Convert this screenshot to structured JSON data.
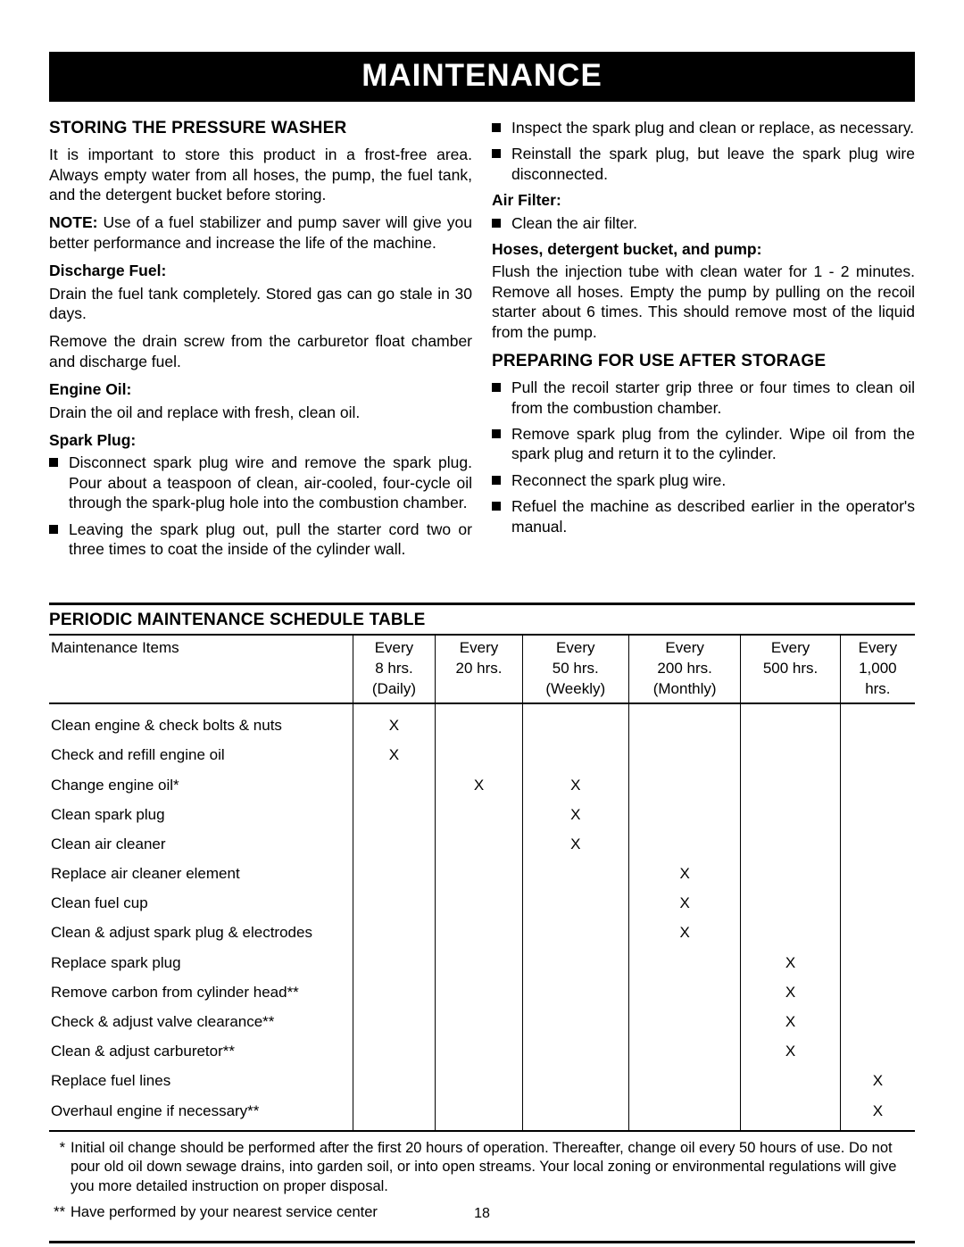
{
  "page_number": "18",
  "banner": "MAINTENANCE",
  "colors": {
    "banner_bg": "#000000",
    "banner_fg": "#ffffff",
    "text": "#000000",
    "page_bg": "#ffffff"
  },
  "left": {
    "heading": "STORING THE PRESSURE WASHER",
    "intro": "It is important to store this product in a frost-free area. Always empty water from all hoses, the pump, the fuel tank, and the detergent bucket before storing.",
    "note_label": "NOTE:",
    "note_body": " Use of a fuel stabilizer and pump saver will give you better performance and increase the life of the machine.",
    "discharge_head": "Discharge Fuel:",
    "discharge_p1": "Drain the fuel tank completely. Stored gas can go stale in 30 days.",
    "discharge_p2": "Remove the drain screw from the carburetor float chamber and discharge fuel.",
    "engine_oil_head": "Engine Oil:",
    "engine_oil_p": "Drain the oil and replace with fresh, clean oil.",
    "spark_head": "Spark Plug:",
    "spark_items": [
      "Disconnect spark plug wire and remove the spark plug. Pour about a teaspoon of clean, air-cooled, four-cycle oil through the spark-plug hole into the combustion chamber.",
      "Leaving the spark plug out, pull the starter cord two or three times to coat the inside of the cylinder wall."
    ]
  },
  "right": {
    "cont_items": [
      "Inspect the spark plug and clean or replace, as necessary.",
      "Reinstall the spark plug, but leave the spark plug wire disconnected."
    ],
    "air_head": "Air Filter:",
    "air_items": [
      "Clean the air filter."
    ],
    "hoses_head": "Hoses, detergent bucket, and pump:",
    "hoses_p": "Flush the injection tube with clean water for 1 - 2 minutes. Remove all hoses. Empty the pump by pulling on the recoil starter about 6 times. This should remove most of the liquid from the pump.",
    "prep_heading": "PREPARING FOR USE AFTER STORAGE",
    "prep_items": [
      "Pull the recoil starter grip three or four times to clean oil from the combustion chamber.",
      "Remove spark plug from the cylinder. Wipe oil from the spark plug and return it to the cylinder.",
      "Reconnect the spark plug wire.",
      "Refuel the machine as described earlier in the operator's manual."
    ]
  },
  "table": {
    "title": "PERIODIC MAINTENANCE SCHEDULE TABLE",
    "first_col": "Maintenance Items",
    "columns": [
      [
        "Every",
        "8 hrs.",
        "(Daily)"
      ],
      [
        "Every",
        "20 hrs.",
        ""
      ],
      [
        "Every",
        "50 hrs.",
        "(Weekly)"
      ],
      [
        "Every",
        "200 hrs.",
        "(Monthly)"
      ],
      [
        "Every",
        "500 hrs.",
        ""
      ],
      [
        "Every",
        "1,000",
        "hrs."
      ]
    ],
    "rows": [
      {
        "item": "Clean engine & check bolts & nuts",
        "marks": [
          "X",
          "",
          "",
          "",
          "",
          ""
        ]
      },
      {
        "item": "Check and refill engine oil",
        "marks": [
          "X",
          "",
          "",
          "",
          "",
          ""
        ]
      },
      {
        "item": "Change engine oil*",
        "marks": [
          "",
          "X",
          "X",
          "",
          "",
          ""
        ]
      },
      {
        "item": "Clean spark plug",
        "marks": [
          "",
          "",
          "X",
          "",
          "",
          ""
        ]
      },
      {
        "item": "Clean air cleaner",
        "marks": [
          "",
          "",
          "X",
          "",
          "",
          ""
        ]
      },
      {
        "item": "Replace air cleaner element",
        "marks": [
          "",
          "",
          "",
          "X",
          "",
          ""
        ]
      },
      {
        "item": "Clean fuel cup",
        "marks": [
          "",
          "",
          "",
          "X",
          "",
          ""
        ]
      },
      {
        "item": "Clean & adjust spark plug & electrodes",
        "marks": [
          "",
          "",
          "",
          "X",
          "",
          ""
        ]
      },
      {
        "item": "Replace spark plug",
        "marks": [
          "",
          "",
          "",
          "",
          "X",
          ""
        ]
      },
      {
        "item": "Remove carbon from cylinder head**",
        "marks": [
          "",
          "",
          "",
          "",
          "X",
          ""
        ]
      },
      {
        "item": "Check & adjust valve clearance**",
        "marks": [
          "",
          "",
          "",
          "",
          "X",
          ""
        ]
      },
      {
        "item": "Clean & adjust carburetor**",
        "marks": [
          "",
          "",
          "",
          "",
          "X",
          ""
        ]
      },
      {
        "item": "Replace fuel lines",
        "marks": [
          "",
          "",
          "",
          "",
          "",
          "X"
        ]
      },
      {
        "item": "Overhaul engine if necessary**",
        "marks": [
          "",
          "",
          "",
          "",
          "",
          "X"
        ]
      }
    ],
    "footnotes": [
      {
        "mark": "*",
        "text": "Initial oil change should be performed after the first 20 hours of operation. Thereafter, change oil every 50 hours of use. Do not pour old oil down sewage drains, into garden soil, or into open streams. Your local zoning or environmental regulations will give you more detailed instruction on proper disposal."
      },
      {
        "mark": "**",
        "text": "Have performed by your nearest service center"
      }
    ]
  }
}
